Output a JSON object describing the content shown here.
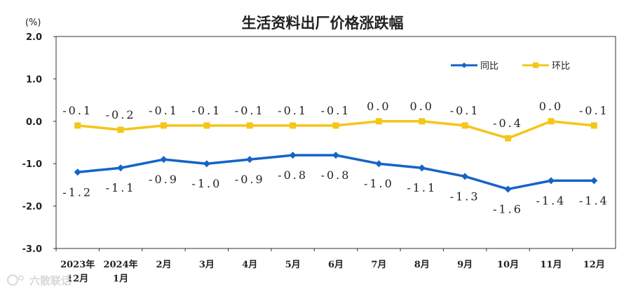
{
  "chart_data": {
    "type": "line",
    "title": "生活资料出厂价格涨跌幅",
    "unit": "(%)",
    "ylim": [
      -3.0,
      2.0
    ],
    "yticks": [
      "2.0",
      "1.0",
      "0.0",
      "-1.0",
      "-2.0",
      "-3.0"
    ],
    "categories": [
      [
        "2023年",
        "12月"
      ],
      [
        "2024年",
        "1月"
      ],
      [
        "2月"
      ],
      [
        "3月"
      ],
      [
        "4月"
      ],
      [
        "5月"
      ],
      [
        "6月"
      ],
      [
        "7月"
      ],
      [
        "8月"
      ],
      [
        "9月"
      ],
      [
        "10月"
      ],
      [
        "11月"
      ],
      [
        "12月"
      ]
    ],
    "legend_position": "top-right",
    "grid": false,
    "series": [
      {
        "name": "同比",
        "color": "#1464c8",
        "marker": "diamond",
        "values": [
          -1.2,
          -1.1,
          -0.9,
          -1.0,
          -0.9,
          -0.8,
          -0.8,
          -1.0,
          -1.1,
          -1.3,
          -1.6,
          -1.4,
          -1.4
        ],
        "labels": [
          "-1.2",
          "-1.1",
          "-0.9",
          "-1.0",
          "-0.9",
          "-0.8",
          "-0.8",
          "-1.0",
          "-1.1",
          "-1.3",
          "-1.6",
          "-1.4",
          "-1.4"
        ]
      },
      {
        "name": "环比",
        "color": "#f5c518",
        "marker": "square",
        "values": [
          -0.1,
          -0.2,
          -0.1,
          -0.1,
          -0.1,
          -0.1,
          -0.1,
          0.0,
          0.0,
          -0.1,
          -0.4,
          0.0,
          -0.1
        ],
        "labels": [
          "-0.1",
          "-0.2",
          "-0.1",
          "-0.1",
          "-0.1",
          "-0.1",
          "-0.1",
          "0.0",
          "0.0",
          "-0.1",
          "-0.4",
          "0.0",
          "-0.1"
        ]
      }
    ]
  },
  "watermark": {
    "text": "六散联话"
  }
}
